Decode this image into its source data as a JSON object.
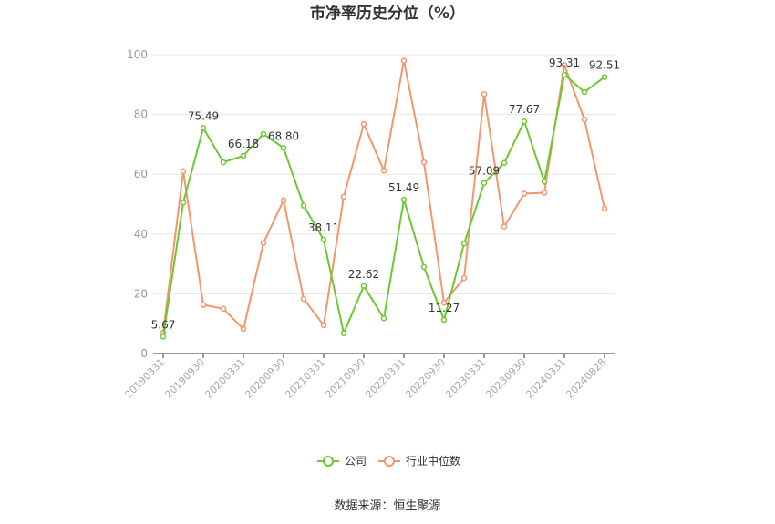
{
  "chart_data": {
    "type": "line",
    "title": "市净率历史分位（%）",
    "source": "数据来源：恒生聚源",
    "ylim": [
      0,
      100
    ],
    "yticks": [
      0,
      20,
      40,
      60,
      80,
      100
    ],
    "grid": true,
    "legend_position": "bottom",
    "x_tick_labels": [
      "20190331",
      "20190930",
      "20200331",
      "20200930",
      "20210331",
      "20210930",
      "20220331",
      "20220930",
      "20230331",
      "20230930",
      "20240331",
      "20240828"
    ],
    "x": [
      "20190331",
      "20190630",
      "20190930",
      "20191231",
      "20200331",
      "20200630",
      "20200930",
      "20201231",
      "20210331",
      "20210630",
      "20210930",
      "20211231",
      "20220331",
      "20220630",
      "20220930",
      "20221231",
      "20230331",
      "20230630",
      "20230930",
      "20231231",
      "20240331",
      "20240630",
      "20240828"
    ],
    "series": [
      {
        "name": "公司",
        "color": "#6cc832",
        "values": [
          5.67,
          50.5,
          75.49,
          64.0,
          66.18,
          73.5,
          68.8,
          49.5,
          38.11,
          6.8,
          22.62,
          11.8,
          51.49,
          29.0,
          11.27,
          36.8,
          57.09,
          63.8,
          77.67,
          57.5,
          93.31,
          87.5,
          92.51
        ]
      },
      {
        "name": "行业中位数",
        "color": "#f4956c",
        "values": [
          7.0,
          61.0,
          16.3,
          15.0,
          8.2,
          37.0,
          51.3,
          18.3,
          9.5,
          52.5,
          76.8,
          61.2,
          98.0,
          64.0,
          17.0,
          25.3,
          86.8,
          42.5,
          53.5,
          53.8,
          96.5,
          78.3,
          48.5
        ]
      }
    ],
    "data_labels": [
      {
        "series": 0,
        "index": 0,
        "text": "5.67"
      },
      {
        "series": 0,
        "index": 2,
        "text": "75.49"
      },
      {
        "series": 0,
        "index": 4,
        "text": "66.18"
      },
      {
        "series": 0,
        "index": 6,
        "text": "68.80"
      },
      {
        "series": 0,
        "index": 8,
        "text": "38.11"
      },
      {
        "series": 0,
        "index": 10,
        "text": "22.62"
      },
      {
        "series": 0,
        "index": 12,
        "text": "51.49"
      },
      {
        "series": 0,
        "index": 14,
        "text": "11.27"
      },
      {
        "series": 0,
        "index": 16,
        "text": "57.09"
      },
      {
        "series": 0,
        "index": 18,
        "text": "77.67"
      },
      {
        "series": 0,
        "index": 20,
        "text": "93.31"
      },
      {
        "series": 0,
        "index": 22,
        "text": "92.51"
      }
    ]
  }
}
